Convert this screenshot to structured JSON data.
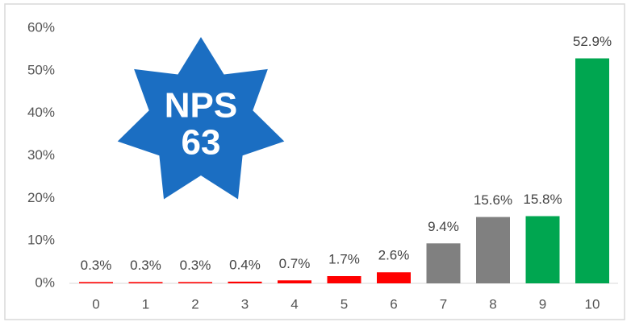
{
  "chart_data": {
    "type": "bar",
    "categories": [
      "0",
      "1",
      "2",
      "3",
      "4",
      "5",
      "6",
      "7",
      "8",
      "9",
      "10"
    ],
    "values": [
      0.3,
      0.3,
      0.3,
      0.4,
      0.7,
      1.7,
      2.6,
      9.4,
      15.6,
      15.8,
      52.9
    ],
    "value_labels": [
      "0.3%",
      "0.3%",
      "0.3%",
      "0.4%",
      "0.7%",
      "1.7%",
      "2.6%",
      "9.4%",
      "15.6%",
      "15.8%",
      "52.9%"
    ],
    "colors": [
      "#ff0000",
      "#ff0000",
      "#ff0000",
      "#ff0000",
      "#ff0000",
      "#ff0000",
      "#ff0000",
      "#808080",
      "#808080",
      "#00a650",
      "#00a650"
    ],
    "ylim": [
      0,
      60
    ],
    "yticks": [
      {
        "value": 0,
        "label": "0%"
      },
      {
        "value": 10,
        "label": "10%"
      },
      {
        "value": 20,
        "label": "20%"
      },
      {
        "value": 30,
        "label": "30%"
      },
      {
        "value": 40,
        "label": "40%"
      },
      {
        "value": 50,
        "label": "50%"
      },
      {
        "value": 60,
        "label": "60%"
      }
    ],
    "annotations": [
      "NPS",
      "63"
    ],
    "badge_color": "#1b6ec2"
  }
}
